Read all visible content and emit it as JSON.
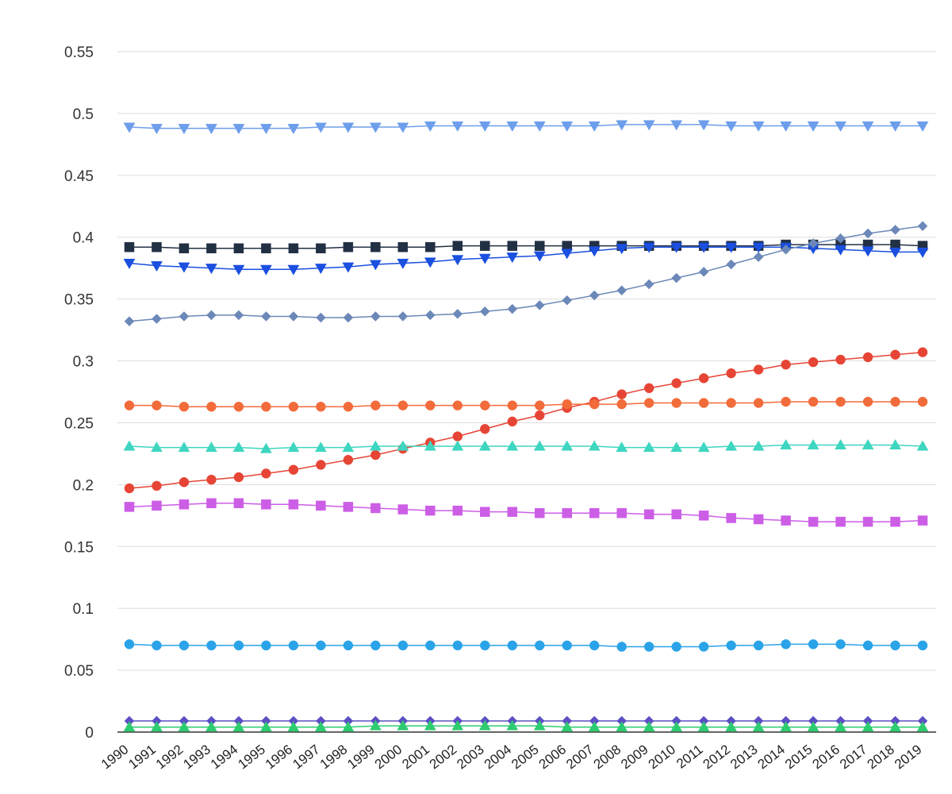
{
  "chart_data": {
    "type": "line",
    "title": "",
    "xlabel": "",
    "ylabel": "",
    "x": [
      "1990",
      "1991",
      "1992",
      "1993",
      "1994",
      "1995",
      "1996",
      "1997",
      "1998",
      "1999",
      "2000",
      "2001",
      "2002",
      "2003",
      "2004",
      "2005",
      "2006",
      "2007",
      "2008",
      "2009",
      "2010",
      "2011",
      "2012",
      "2013",
      "2014",
      "2015",
      "2016",
      "2017",
      "2018",
      "2019"
    ],
    "ylim": [
      0,
      0.55
    ],
    "yticks": [
      "0",
      "0.05",
      "0.1",
      "0.15",
      "0.2",
      "0.25",
      "0.3",
      "0.35",
      "0.4",
      "0.45",
      "0.5",
      "0.55"
    ],
    "grid": true,
    "legend": "none",
    "series": [
      {
        "color": "#6d9eeb",
        "marker": "triangle-down",
        "values": [
          0.489,
          0.488,
          0.488,
          0.488,
          0.488,
          0.488,
          0.488,
          0.489,
          0.489,
          0.489,
          0.489,
          0.49,
          0.49,
          0.49,
          0.49,
          0.49,
          0.49,
          0.49,
          0.491,
          0.491,
          0.491,
          0.491,
          0.49,
          0.49,
          0.49,
          0.49,
          0.49,
          0.49,
          0.49,
          0.49
        ]
      },
      {
        "color": "#223044",
        "marker": "square",
        "values": [
          0.392,
          0.392,
          0.391,
          0.391,
          0.391,
          0.391,
          0.391,
          0.391,
          0.392,
          0.392,
          0.392,
          0.392,
          0.393,
          0.393,
          0.393,
          0.393,
          0.393,
          0.393,
          0.393,
          0.393,
          0.393,
          0.393,
          0.393,
          0.393,
          0.394,
          0.394,
          0.394,
          0.394,
          0.394,
          0.393
        ]
      },
      {
        "color": "#1a4fe0",
        "marker": "triangle-down",
        "values": [
          0.379,
          0.377,
          0.376,
          0.375,
          0.374,
          0.374,
          0.374,
          0.375,
          0.376,
          0.378,
          0.379,
          0.38,
          0.382,
          0.383,
          0.384,
          0.385,
          0.387,
          0.389,
          0.391,
          0.392,
          0.392,
          0.392,
          0.392,
          0.392,
          0.392,
          0.391,
          0.39,
          0.389,
          0.388,
          0.388
        ]
      },
      {
        "color": "#6b88b8",
        "marker": "diamond",
        "values": [
          0.332,
          0.334,
          0.336,
          0.337,
          0.337,
          0.336,
          0.336,
          0.335,
          0.335,
          0.336,
          0.336,
          0.337,
          0.338,
          0.34,
          0.342,
          0.345,
          0.349,
          0.353,
          0.357,
          0.362,
          0.367,
          0.372,
          0.378,
          0.384,
          0.39,
          0.395,
          0.399,
          0.403,
          0.406,
          0.409
        ]
      },
      {
        "color": "#e64535",
        "marker": "circle",
        "values": [
          0.197,
          0.199,
          0.202,
          0.204,
          0.206,
          0.209,
          0.212,
          0.216,
          0.22,
          0.224,
          0.229,
          0.234,
          0.239,
          0.245,
          0.251,
          0.256,
          0.262,
          0.267,
          0.273,
          0.278,
          0.282,
          0.286,
          0.29,
          0.293,
          0.297,
          0.299,
          0.301,
          0.303,
          0.305,
          0.307
        ]
      },
      {
        "color": "#f26b3a",
        "marker": "circle",
        "values": [
          0.264,
          0.264,
          0.263,
          0.263,
          0.263,
          0.263,
          0.263,
          0.263,
          0.263,
          0.264,
          0.264,
          0.264,
          0.264,
          0.264,
          0.264,
          0.264,
          0.265,
          0.265,
          0.265,
          0.266,
          0.266,
          0.266,
          0.266,
          0.266,
          0.267,
          0.267,
          0.267,
          0.267,
          0.267,
          0.267
        ]
      },
      {
        "color": "#3ed6c0",
        "marker": "triangle-up",
        "values": [
          0.231,
          0.23,
          0.23,
          0.23,
          0.23,
          0.229,
          0.23,
          0.23,
          0.23,
          0.231,
          0.231,
          0.231,
          0.231,
          0.231,
          0.231,
          0.231,
          0.231,
          0.231,
          0.23,
          0.23,
          0.23,
          0.23,
          0.231,
          0.231,
          0.232,
          0.232,
          0.232,
          0.232,
          0.232,
          0.231
        ]
      },
      {
        "color": "#cc5ee6",
        "marker": "square",
        "values": [
          0.182,
          0.183,
          0.184,
          0.185,
          0.185,
          0.184,
          0.184,
          0.183,
          0.182,
          0.181,
          0.18,
          0.179,
          0.179,
          0.178,
          0.178,
          0.177,
          0.177,
          0.177,
          0.177,
          0.176,
          0.176,
          0.175,
          0.173,
          0.172,
          0.171,
          0.17,
          0.17,
          0.17,
          0.17,
          0.171
        ]
      },
      {
        "color": "#2aa3e8",
        "marker": "circle",
        "values": [
          0.071,
          0.07,
          0.07,
          0.07,
          0.07,
          0.07,
          0.07,
          0.07,
          0.07,
          0.07,
          0.07,
          0.07,
          0.07,
          0.07,
          0.07,
          0.07,
          0.07,
          0.07,
          0.069,
          0.069,
          0.069,
          0.069,
          0.07,
          0.07,
          0.071,
          0.071,
          0.071,
          0.07,
          0.07,
          0.07
        ]
      },
      {
        "color": "#5c4fc4",
        "marker": "diamond",
        "values": [
          0.009,
          0.009,
          0.009,
          0.009,
          0.009,
          0.009,
          0.009,
          0.009,
          0.009,
          0.009,
          0.009,
          0.009,
          0.009,
          0.009,
          0.009,
          0.009,
          0.009,
          0.009,
          0.009,
          0.009,
          0.009,
          0.009,
          0.009,
          0.009,
          0.009,
          0.009,
          0.009,
          0.009,
          0.009,
          0.009
        ]
      },
      {
        "color": "#2ecc71",
        "marker": "triangle-up",
        "values": [
          0.004,
          0.004,
          0.004,
          0.004,
          0.004,
          0.004,
          0.004,
          0.004,
          0.004,
          0.005,
          0.005,
          0.005,
          0.005,
          0.005,
          0.005,
          0.005,
          0.004,
          0.004,
          0.004,
          0.004,
          0.004,
          0.004,
          0.004,
          0.004,
          0.004,
          0.004,
          0.004,
          0.004,
          0.004,
          0.004
        ]
      }
    ]
  }
}
